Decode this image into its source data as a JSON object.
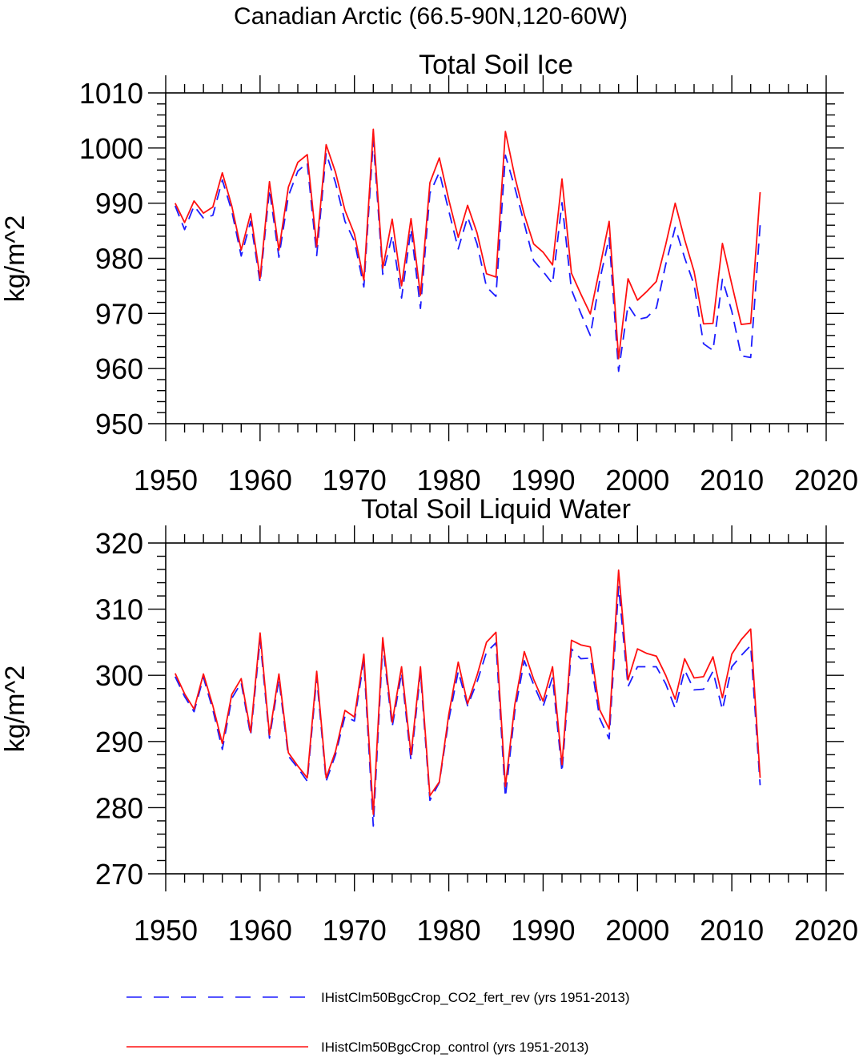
{
  "main_title": "Canadian Arctic (66.5-90N,120-60W)",
  "legend": [
    {
      "label": "IHistClm50BgcCrop_CO2_fert_rev (yrs 1951-2013)",
      "color": "#1c1cff",
      "dash": "dashed"
    },
    {
      "label": "IHistClm50BgcCrop_control (yrs 1951-2013)",
      "color": "#ff1010",
      "dash": "solid"
    }
  ],
  "chart_data": [
    {
      "type": "line",
      "title": "Total Soil Ice",
      "xlabel": "",
      "ylabel": "kg/m^2",
      "xlim": [
        1950,
        2020
      ],
      "ylim": [
        950,
        1010
      ],
      "xticks": [
        1950,
        1960,
        1970,
        1980,
        1990,
        2000,
        2010,
        2020
      ],
      "yticks": [
        950,
        960,
        970,
        980,
        990,
        1000,
        1010
      ],
      "x": [
        1951,
        1952,
        1953,
        1954,
        1955,
        1956,
        1957,
        1958,
        1959,
        1960,
        1961,
        1962,
        1963,
        1964,
        1965,
        1966,
        1967,
        1968,
        1969,
        1970,
        1971,
        1972,
        1973,
        1974,
        1975,
        1976,
        1977,
        1978,
        1979,
        1980,
        1981,
        1982,
        1983,
        1984,
        1985,
        1986,
        1987,
        1988,
        1989,
        1990,
        1991,
        1992,
        1993,
        1994,
        1995,
        1996,
        1997,
        1998,
        1999,
        2000,
        2001,
        2002,
        2003,
        2004,
        2005,
        2006,
        2007,
        2008,
        2009,
        2010,
        2011,
        2012,
        2013
      ],
      "series": [
        {
          "name": "IHistClm50BgcCrop_CO2_fert_rev (yrs 1951-2013)",
          "color": "#1c1cff",
          "dash": "dashed",
          "values": [
            989.5,
            985.2,
            989.5,
            987.3,
            987.8,
            994.2,
            988.6,
            980.4,
            986.7,
            975.6,
            992.5,
            980.2,
            991.3,
            995.8,
            997.3,
            980.5,
            999.1,
            993.7,
            986.7,
            983.1,
            974.8,
            1001.5,
            977.1,
            984.1,
            972.8,
            985.3,
            970.9,
            991.8,
            995.6,
            988.6,
            981.7,
            987.5,
            982.6,
            974.8,
            973.1,
            998.7,
            992.8,
            986.3,
            979.6,
            977.6,
            975.4,
            990.1,
            974.3,
            970.0,
            966.0,
            976.0,
            983.7,
            959.5,
            971.5,
            968.9,
            969.3,
            971.0,
            978.9,
            985.6,
            980.1,
            975.2,
            964.5,
            963.3,
            976.2,
            970.4,
            962.3,
            962.0,
            986.0
          ]
        },
        {
          "name": "IHistClm50BgcCrop_control (yrs 1951-2013)",
          "color": "#ff1010",
          "dash": "solid",
          "values": [
            990.0,
            986.5,
            990.4,
            988.2,
            989.3,
            995.5,
            989.5,
            981.5,
            988.1,
            976.4,
            993.9,
            981.5,
            992.9,
            997.4,
            998.8,
            982.1,
            1000.6,
            995.6,
            988.7,
            984.4,
            976.0,
            1003.4,
            978.2,
            987.1,
            975.0,
            987.2,
            973.3,
            993.7,
            998.2,
            990.6,
            983.8,
            989.6,
            984.6,
            977.2,
            976.6,
            1003.0,
            994.8,
            987.9,
            982.6,
            981.1,
            978.8,
            994.4,
            977.3,
            973.5,
            969.9,
            978.2,
            986.7,
            961.8,
            976.3,
            972.4,
            974.0,
            975.8,
            982.5,
            990.0,
            983.4,
            977.6,
            968.1,
            968.2,
            982.7,
            975.3,
            968.0,
            968.2,
            992.0
          ]
        }
      ]
    },
    {
      "type": "line",
      "title": "Total Soil Liquid Water",
      "xlabel": "",
      "ylabel": "kg/m^2",
      "xlim": [
        1950,
        2020
      ],
      "ylim": [
        270,
        320
      ],
      "xticks": [
        1950,
        1960,
        1970,
        1980,
        1990,
        2000,
        2010,
        2020
      ],
      "yticks": [
        270,
        280,
        290,
        300,
        310,
        320
      ],
      "x": [
        1951,
        1952,
        1953,
        1954,
        1955,
        1956,
        1957,
        1958,
        1959,
        1960,
        1961,
        1962,
        1963,
        1964,
        1965,
        1966,
        1967,
        1968,
        1969,
        1970,
        1971,
        1972,
        1973,
        1974,
        1975,
        1976,
        1977,
        1978,
        1979,
        1980,
        1981,
        1982,
        1983,
        1984,
        1985,
        1986,
        1987,
        1988,
        1989,
        1990,
        1991,
        1992,
        1993,
        1994,
        1995,
        1996,
        1997,
        1998,
        1999,
        2000,
        2001,
        2002,
        2003,
        2004,
        2005,
        2006,
        2007,
        2008,
        2009,
        2010,
        2011,
        2012,
        2013
      ],
      "series": [
        {
          "name": "IHistClm50BgcCrop_CO2_fert_rev (yrs 1951-2013)",
          "color": "#1c1cff",
          "dash": "dashed",
          "values": [
            299.8,
            296.8,
            294.5,
            299.7,
            294.8,
            288.8,
            296.5,
            298.9,
            290.9,
            305.4,
            290.5,
            299.4,
            287.8,
            286.0,
            284.0,
            299.7,
            284.0,
            288.0,
            293.8,
            293.1,
            302.2,
            277.2,
            304.7,
            292.2,
            300.4,
            287.1,
            300.4,
            281.1,
            283.8,
            293.3,
            300.6,
            295.4,
            299.0,
            303.5,
            304.9,
            281.6,
            294.6,
            302.2,
            298.6,
            295.3,
            299.7,
            285.4,
            304.0,
            302.5,
            302.6,
            293.5,
            290.4,
            313.4,
            298.3,
            301.3,
            301.3,
            301.3,
            298.7,
            295.0,
            300.8,
            297.8,
            297.9,
            300.6,
            294.8,
            301.3,
            303.0,
            304.5,
            283.4
          ]
        },
        {
          "name": "IHistClm50BgcCrop_control (yrs 1951-2013)",
          "color": "#ff1010",
          "dash": "solid",
          "values": [
            300.3,
            297.2,
            294.9,
            300.2,
            295.4,
            289.7,
            297.1,
            299.5,
            291.4,
            306.4,
            291.0,
            300.2,
            288.3,
            286.3,
            284.5,
            300.6,
            284.5,
            288.5,
            294.7,
            293.7,
            303.2,
            279.0,
            305.7,
            292.9,
            301.3,
            288.0,
            301.3,
            281.8,
            283.9,
            294.1,
            302.0,
            295.7,
            300.0,
            305.0,
            306.5,
            283.2,
            295.6,
            303.6,
            299.4,
            296.1,
            301.3,
            286.5,
            305.3,
            304.6,
            304.3,
            294.8,
            291.9,
            315.9,
            299.3,
            304.0,
            303.3,
            302.9,
            300.0,
            296.4,
            302.5,
            299.6,
            299.8,
            302.8,
            296.6,
            303.2,
            305.4,
            307.0,
            284.5
          ]
        }
      ]
    }
  ]
}
